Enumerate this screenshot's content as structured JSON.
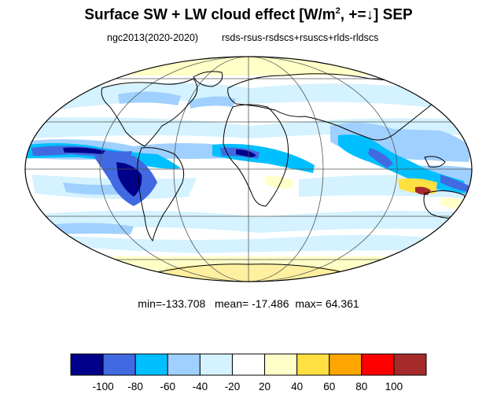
{
  "title": {
    "main": "Surface SW + LW cloud effect [W/m",
    "sup": "2",
    "tail": ", +=↓]  SEP"
  },
  "subtitle_left": "ngc2013(2020-2020)",
  "subtitle_right": "rsds-rsus-rsdscs+rsuscs+rlds-rldscs",
  "stats": {
    "min_label": "min=",
    "min": "-133.708",
    "mean_label": "mean=",
    "mean": "-17.486",
    "max_label": "max=",
    "max": "64.361"
  },
  "projection": "mollweide",
  "colorbar": {
    "boundaries": [
      "-100",
      "-80",
      "-60",
      "-40",
      "-20",
      "20",
      "40",
      "60",
      "80",
      "100"
    ],
    "colors": [
      "#00008b",
      "#4169e1",
      "#00bfff",
      "#a0d0ff",
      "#d4f2ff",
      "#ffffff",
      "#ffffc8",
      "#ffe040",
      "#ffa500",
      "#ff0000",
      "#a52a2a"
    ]
  }
}
